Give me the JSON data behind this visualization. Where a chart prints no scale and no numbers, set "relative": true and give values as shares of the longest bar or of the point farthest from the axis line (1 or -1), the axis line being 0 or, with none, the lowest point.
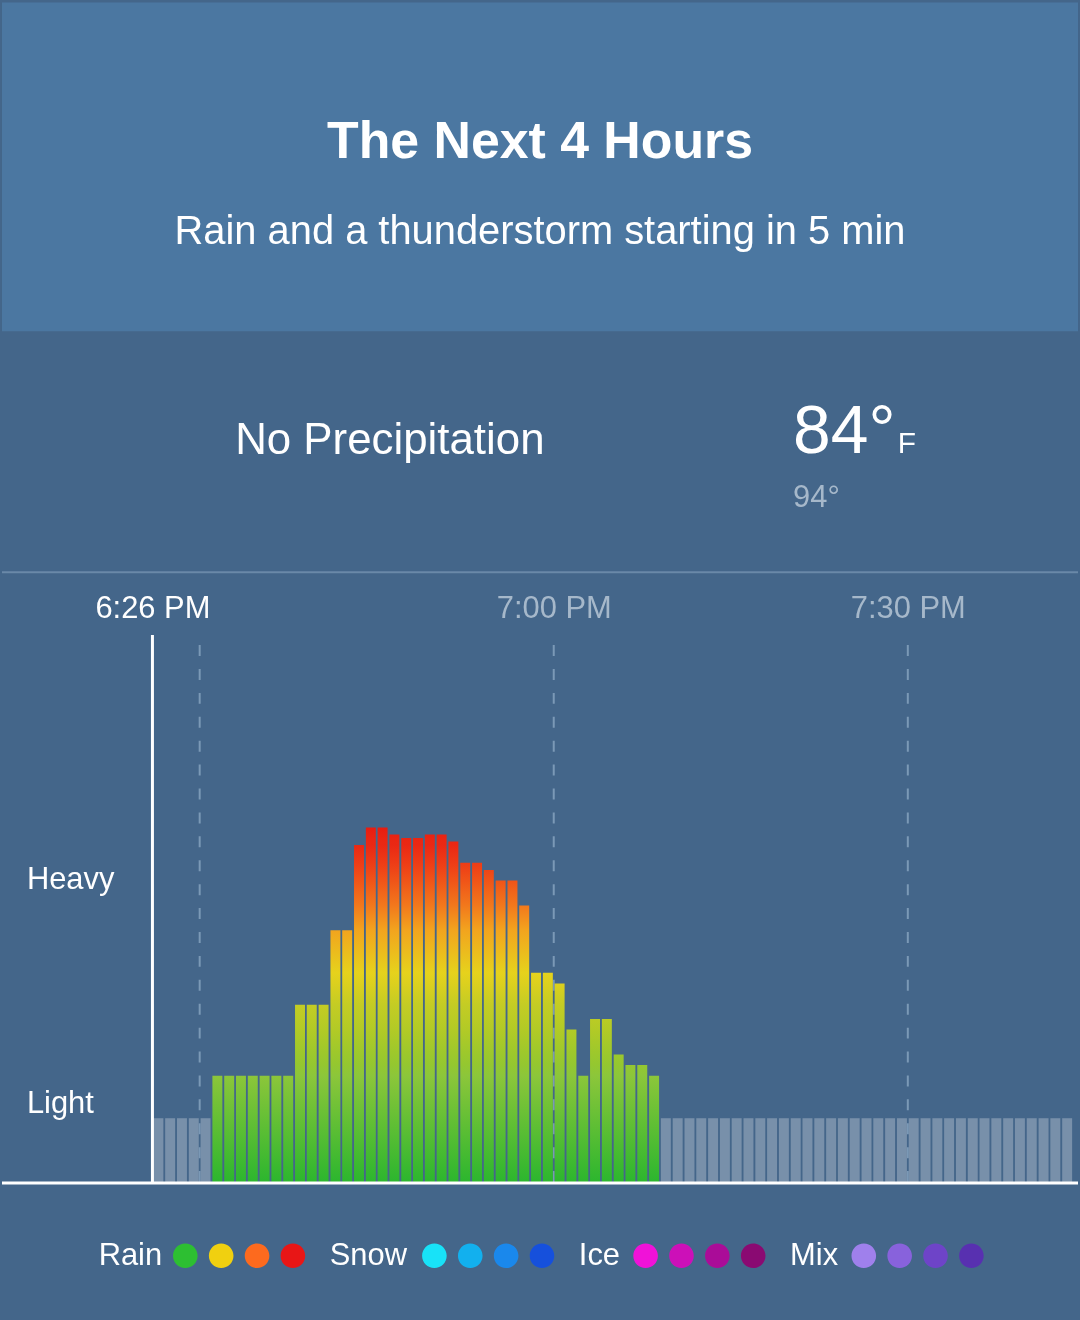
{
  "chart_data": {
    "type": "bar",
    "title": "The Next 4 Hours",
    "subtitle": "Rain and a thunderstorm starting in 5 min",
    "annotations": [
      "No Precipitation",
      "84°",
      "F",
      "94°",
      "Heavy",
      "Light"
    ],
    "relative": true,
    "grid": "x",
    "legend": "bottom",
    "xlim": [
      18.4333,
      19.7333
    ],
    "xticks": [
      {
        "value": 18.4333,
        "label": "6:26 PM"
      },
      {
        "value": 18.5,
        "label": null
      },
      {
        "value": 19,
        "label": "7:00 PM"
      },
      {
        "value": 19.5,
        "label": "7:30 PM"
      }
    ],
    "series": [
      {
        "x": [
          18.4417,
          18.4583,
          18.475,
          18.4917,
          18.5083
        ],
        "values": [
          0.18,
          0.18,
          0.18,
          0.18,
          0.18
        ],
        "color": "#7890aa"
      },
      {
        "x": [
          18.525,
          18.5417,
          18.5583,
          18.575,
          18.5917,
          18.6083,
          18.625,
          18.6417,
          18.6583,
          18.675,
          18.6917,
          18.7083,
          18.725,
          18.7417,
          18.7583,
          18.775,
          18.7917,
          18.8083,
          18.825,
          18.8417,
          18.8583,
          18.875,
          18.8917,
          18.9083,
          18.925,
          18.9417,
          18.9583,
          18.975,
          18.9917,
          19.0083,
          19.025,
          19.0417,
          19.0583,
          19.075,
          19.0917,
          19.1083,
          19.125,
          19.1417
        ],
        "values": [
          0.3,
          0.3,
          0.3,
          0.3,
          0.3,
          0.3,
          0.3,
          0.5,
          0.5,
          0.5,
          0.71,
          0.71,
          0.95,
          1.0,
          1.0,
          0.98,
          0.97,
          0.97,
          0.98,
          0.98,
          0.96,
          0.9,
          0.9,
          0.88,
          0.85,
          0.85,
          0.78,
          0.59,
          0.59,
          0.56,
          0.43,
          0.3,
          0.46,
          0.46,
          0.36,
          0.33,
          0.33,
          0.3
        ],
        "color": "#2cb62e",
        "colors": [
          "#8cc63a",
          "#8cc63a",
          "#8cc63a",
          "#8cc63a",
          "#8cc63a",
          "#8cc63a",
          "#8cc63a",
          "#c4cc24",
          "#c4cc24",
          "#c4cc24",
          "#f2a41e",
          "#f2a41e",
          "#ea2814",
          "#e81c10",
          "#e81c10",
          "#e92212",
          "#ea2512",
          "#ea2512",
          "#e92212",
          "#e92212",
          "#ea2713",
          "#ee3c16",
          "#ee3c16",
          "#ef4517",
          "#f05418",
          "#f05418",
          "#f2781c",
          "#e6d21c",
          "#e6d21c",
          "#dcd01e",
          "#b2ca26",
          "#8cc63a",
          "#bacb25",
          "#bacb25",
          "#9cc82c",
          "#94c730",
          "#94c730",
          "#8cc63a"
        ]
      },
      {
        "x": [
          19.1583,
          19.175,
          19.1917,
          19.2083,
          19.225,
          19.2417,
          19.2583,
          19.275,
          19.2917,
          19.3083,
          19.325,
          19.3417,
          19.3583,
          19.375,
          19.3917,
          19.4083,
          19.425,
          19.4417,
          19.4583,
          19.475,
          19.4917,
          19.5083,
          19.525,
          19.5417,
          19.5583,
          19.575,
          19.5917,
          19.6083,
          19.625,
          19.6417,
          19.6583,
          19.675,
          19.6917,
          19.7083,
          19.725
        ],
        "values": [
          0.18,
          0.18,
          0.18,
          0.18,
          0.18,
          0.18,
          0.18,
          0.18,
          0.18,
          0.18,
          0.18,
          0.18,
          0.18,
          0.18,
          0.18,
          0.18,
          0.18,
          0.18,
          0.18,
          0.18,
          0.18,
          0.18,
          0.18,
          0.18,
          0.18,
          0.18,
          0.18,
          0.18,
          0.18,
          0.18,
          0.18,
          0.18,
          0.18,
          0.18,
          0.18
        ],
        "color": "#7890aa"
      },
      {
        "name": "Rain",
        "values": [
          null,
          null,
          null,
          null
        ],
        "colors": [
          "#2dbf32",
          "#f0d010",
          "#fd6a1e",
          "#e81616"
        ]
      },
      {
        "name": "Snow",
        "values": [
          null,
          null,
          null,
          null
        ],
        "colors": [
          "#18e2f8",
          "#12b0ee",
          "#1a88ec",
          "#1650dc"
        ]
      },
      {
        "name": "Ice",
        "values": [
          null,
          null,
          null,
          null
        ],
        "colors": [
          "#f012d8",
          "#cc10b8",
          "#aa0c98",
          "#8a0a72"
        ]
      },
      {
        "name": "Mix",
        "values": [
          null,
          null,
          null,
          null
        ],
        "colors": [
          "#9f80ec",
          "#8862dc",
          "#6e44c8",
          "#5830b0"
        ]
      }
    ]
  }
}
